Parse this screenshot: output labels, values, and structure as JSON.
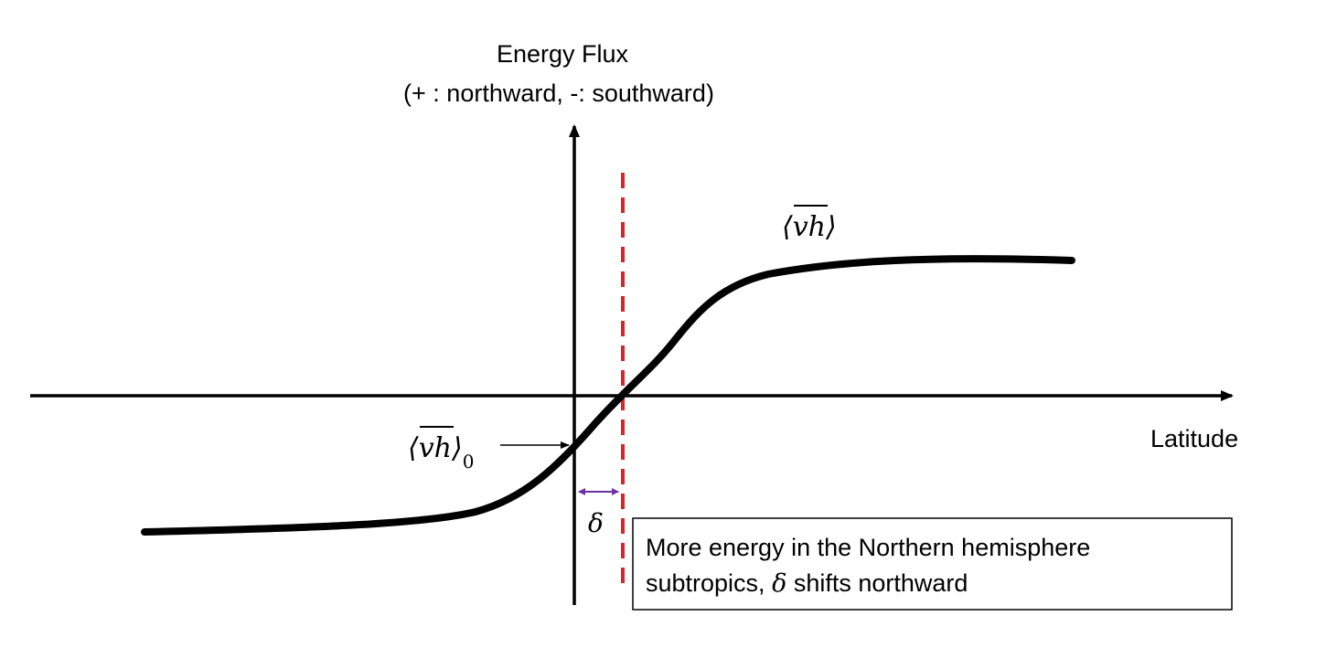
{
  "y_axis": {
    "title_line1": "Energy Flux",
    "title_line2": "(+ : northward, -: southward)"
  },
  "x_axis": {
    "label": "Latitude"
  },
  "curve": {
    "label_open": "⟨",
    "label_var": "vh",
    "label_close": "⟩",
    "color": "#000000"
  },
  "intercept": {
    "label_open": "⟨",
    "label_var": "vh",
    "label_close": "⟩",
    "label_sub": "0"
  },
  "shift": {
    "symbol": "δ",
    "arrow_color": "#7030A0",
    "line_color": "#D62728"
  },
  "note": {
    "line1": "More energy in the Northern hemisphere",
    "line2_pre": "subtropics, ",
    "line2_symbol": "δ",
    "line2_post": " shifts northward"
  }
}
